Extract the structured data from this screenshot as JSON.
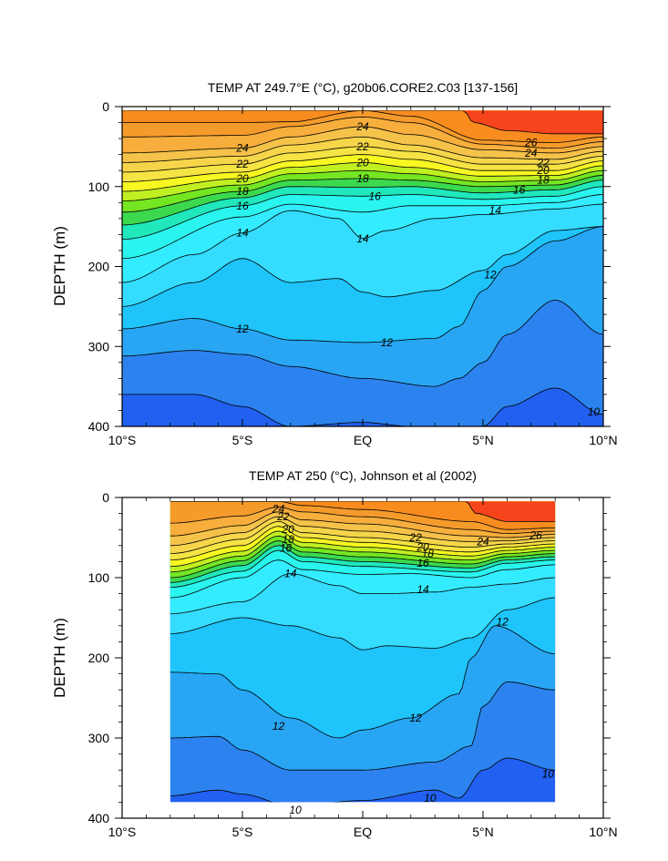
{
  "chart_data": [
    {
      "type": "contour",
      "title": "TEMP AT 249.7°E (°C), g20b06.CORE2.C03 [137-156]",
      "ylabel": "DEPTH (m)",
      "xlabel": "",
      "x_tick_labels": [
        "10°S",
        "5°S",
        "EQ",
        "5°N",
        "10°N"
      ],
      "x_ticks": [
        -10,
        -5,
        0,
        5,
        10
      ],
      "y_tick_labels": [
        "0",
        "100",
        "200",
        "300",
        "400"
      ],
      "y_ticks": [
        0,
        100,
        200,
        300,
        400
      ],
      "xlim": [
        -10,
        10
      ],
      "ylim": [
        0,
        400
      ],
      "y_reversed": true,
      "data_xlim": [
        -10,
        10
      ],
      "data_ylim": [
        5,
        400
      ],
      "contour_interval": 1,
      "isotherms": [
        {
          "level": 27,
          "x": [
            -10,
            -5,
            -3,
            0,
            4.2,
            4.6,
            6,
            8,
            10
          ],
          "y": [
            5,
            5,
            5,
            5,
            5,
            20,
            30,
            34,
            34
          ]
        },
        {
          "level": 26,
          "x": [
            -10,
            -5,
            -3,
            0,
            2,
            5,
            8,
            10
          ],
          "y": [
            20,
            20,
            19,
            5,
            12,
            42,
            45,
            38
          ]
        },
        {
          "level": 25,
          "x": [
            -10,
            -5,
            -3,
            0,
            2,
            5,
            8,
            10
          ],
          "y": [
            38,
            36,
            25,
            13,
            20,
            47,
            52,
            44
          ]
        },
        {
          "level": 24,
          "x": [
            -10,
            -5,
            -3,
            0,
            2,
            5,
            8,
            10
          ],
          "y": [
            58,
            52,
            38,
            25,
            35,
            54,
            58,
            50
          ]
        },
        {
          "level": 23,
          "x": [
            -10,
            -5,
            -3,
            0,
            2,
            5,
            8,
            10
          ],
          "y": [
            70,
            62,
            48,
            38,
            48,
            64,
            66,
            56
          ]
        },
        {
          "level": 22,
          "x": [
            -10,
            -5,
            -3,
            0,
            2,
            5,
            8,
            10
          ],
          "y": [
            82,
            72,
            58,
            50,
            56,
            72,
            72,
            62
          ]
        },
        {
          "level": 21,
          "x": [
            -10,
            -5,
            -3,
            0,
            2,
            5,
            8,
            10
          ],
          "y": [
            94,
            82,
            68,
            60,
            66,
            80,
            80,
            68
          ]
        },
        {
          "level": 20,
          "x": [
            -10,
            -5,
            -3,
            0,
            2,
            5,
            8,
            10
          ],
          "y": [
            106,
            90,
            76,
            70,
            76,
            87,
            86,
            74
          ]
        },
        {
          "level": 19,
          "x": [
            -10,
            -5,
            -3,
            0,
            2,
            5,
            8,
            10
          ],
          "y": [
            118,
            98,
            84,
            80,
            84,
            94,
            92,
            80
          ]
        },
        {
          "level": 18,
          "x": [
            -10,
            -5,
            -3,
            0,
            2,
            5,
            8,
            10
          ],
          "y": [
            132,
            106,
            92,
            90,
            92,
            100,
            98,
            86
          ]
        },
        {
          "level": 17,
          "x": [
            -10,
            -5,
            -3,
            0,
            2,
            5,
            8,
            10
          ],
          "y": [
            148,
            114,
            100,
            101,
            100,
            108,
            104,
            92
          ]
        },
        {
          "level": 16,
          "x": [
            -10,
            -5,
            -3,
            0,
            2,
            5,
            8,
            10
          ],
          "y": [
            166,
            124,
            110,
            112,
            110,
            116,
            112,
            100
          ]
        },
        {
          "level": 15,
          "x": [
            -10,
            -5,
            -3,
            0,
            2,
            5,
            8,
            10
          ],
          "y": [
            190,
            138,
            122,
            132,
            124,
            124,
            120,
            110
          ]
        },
        {
          "level": 14,
          "x": [
            -10,
            -7,
            -5,
            -3,
            -1,
            0,
            1,
            3,
            5,
            8,
            10
          ],
          "y": [
            220,
            185,
            158,
            130,
            140,
            165,
            155,
            140,
            135,
            128,
            122
          ]
        },
        {
          "level": 13,
          "x": [
            -10,
            -7,
            -5,
            -3,
            -1,
            0,
            1,
            3,
            5,
            6,
            8,
            10
          ],
          "y": [
            250,
            220,
            190,
            220,
            215,
            232,
            238,
            230,
            205,
            185,
            155,
            150
          ]
        },
        {
          "level": 12,
          "x": [
            -10,
            -7,
            -5,
            -3,
            0,
            3,
            4,
            5,
            6,
            8,
            10
          ],
          "y": [
            278,
            265,
            278,
            292,
            295,
            290,
            275,
            230,
            200,
            168,
            150
          ]
        },
        {
          "level": 11,
          "x": [
            -10,
            -7,
            -5,
            -3,
            0,
            3,
            4,
            5,
            6,
            8,
            10
          ],
          "y": [
            312,
            305,
            310,
            325,
            340,
            350,
            340,
            320,
            285,
            242,
            285
          ]
        },
        {
          "level": 10,
          "x": [
            -10,
            -7,
            -5,
            -3,
            0,
            2,
            5,
            6,
            8,
            10
          ],
          "y": [
            360,
            360,
            375,
            400,
            395,
            400,
            400,
            375,
            352,
            385
          ]
        }
      ],
      "contour_labels": [
        {
          "text": "24",
          "x": -5,
          "y": 52
        },
        {
          "text": "22",
          "x": -5,
          "y": 72
        },
        {
          "text": "20",
          "x": -5,
          "y": 90
        },
        {
          "text": "18",
          "x": -5,
          "y": 106
        },
        {
          "text": "16",
          "x": -5,
          "y": 124
        },
        {
          "text": "14",
          "x": -5,
          "y": 158
        },
        {
          "text": "12",
          "x": -5,
          "y": 278
        },
        {
          "text": "24",
          "x": 0,
          "y": 25
        },
        {
          "text": "22",
          "x": 0,
          "y": 50
        },
        {
          "text": "20",
          "x": 0,
          "y": 70
        },
        {
          "text": "18",
          "x": 0,
          "y": 90
        },
        {
          "text": "16",
          "x": 0.5,
          "y": 112
        },
        {
          "text": "14",
          "x": 0,
          "y": 165
        },
        {
          "text": "12",
          "x": 1,
          "y": 295
        },
        {
          "text": "26",
          "x": 7,
          "y": 45
        },
        {
          "text": "24",
          "x": 7,
          "y": 58
        },
        {
          "text": "22",
          "x": 7.5,
          "y": 70
        },
        {
          "text": "20",
          "x": 7.5,
          "y": 80
        },
        {
          "text": "18",
          "x": 7.5,
          "y": 92
        },
        {
          "text": "16",
          "x": 6.5,
          "y": 104
        },
        {
          "text": "14",
          "x": 5.5,
          "y": 130
        },
        {
          "text": "12",
          "x": 5.3,
          "y": 210
        },
        {
          "text": "10",
          "x": 9.6,
          "y": 382
        }
      ]
    },
    {
      "type": "contour",
      "title": "TEMP AT 250 (°C), Johnson et al (2002)",
      "ylabel": "DEPTH (m)",
      "xlabel": "",
      "x_tick_labels": [
        "10°S",
        "5°S",
        "EQ",
        "5°N",
        "10°N"
      ],
      "x_ticks": [
        -10,
        -5,
        0,
        5,
        10
      ],
      "y_tick_labels": [
        "0",
        "100",
        "200",
        "300",
        "400"
      ],
      "y_ticks": [
        0,
        100,
        200,
        300,
        400
      ],
      "xlim": [
        -10,
        10
      ],
      "ylim": [
        0,
        400
      ],
      "y_reversed": true,
      "data_xlim": [
        -8,
        8
      ],
      "data_ylim": [
        5,
        380
      ],
      "contour_interval": 1,
      "isotherms": [
        {
          "level": 27,
          "x": [
            -8,
            -3,
            0,
            4.3,
            4.7,
            6,
            8
          ],
          "y": [
            5,
            5,
            5,
            5,
            20,
            30,
            30
          ]
        },
        {
          "level": 26,
          "x": [
            -8,
            -5,
            -3.5,
            -2.5,
            0,
            4.5,
            6,
            8
          ],
          "y": [
            5,
            5,
            5,
            10,
            15,
            30,
            40,
            38
          ]
        },
        {
          "level": 25,
          "x": [
            -8,
            -5,
            -3.5,
            -2.5,
            0,
            4.5,
            6,
            8
          ],
          "y": [
            32,
            23,
            12,
            18,
            24,
            40,
            45,
            42
          ]
        },
        {
          "level": 24,
          "x": [
            -8,
            -5,
            -3.5,
            -2.5,
            0,
            4.5,
            6,
            8
          ],
          "y": [
            48,
            35,
            18,
            28,
            33,
            48,
            50,
            46
          ]
        },
        {
          "level": 23,
          "x": [
            -8,
            -5,
            -3.5,
            -2.5,
            0,
            4.5,
            6,
            8
          ],
          "y": [
            60,
            44,
            24,
            36,
            42,
            55,
            54,
            50
          ]
        },
        {
          "level": 22,
          "x": [
            -8,
            -5,
            -3.5,
            -2.5,
            0,
            4.5,
            6,
            8
          ],
          "y": [
            70,
            52,
            30,
            44,
            50,
            62,
            58,
            54
          ]
        },
        {
          "level": 21,
          "x": [
            -8,
            -5,
            -3.5,
            -2.5,
            0,
            4.5,
            6,
            8
          ],
          "y": [
            78,
            60,
            36,
            50,
            56,
            68,
            62,
            58
          ]
        },
        {
          "level": 20,
          "x": [
            -8,
            -5,
            -3.5,
            -2.5,
            0,
            4.5,
            6,
            8
          ],
          "y": [
            86,
            67,
            42,
            56,
            62,
            73,
            66,
            62
          ]
        },
        {
          "level": 19,
          "x": [
            -8,
            -5,
            -3.5,
            -2.5,
            0,
            4.5,
            6,
            8
          ],
          "y": [
            93,
            73,
            48,
            62,
            68,
            78,
            70,
            66
          ]
        },
        {
          "level": 18,
          "x": [
            -8,
            -5,
            -3.5,
            -2.5,
            0,
            4.5,
            6,
            8
          ],
          "y": [
            100,
            79,
            54,
            68,
            74,
            83,
            74,
            70
          ]
        },
        {
          "level": 17,
          "x": [
            -8,
            -5,
            -3.5,
            -2.5,
            0,
            4.5,
            6,
            8
          ],
          "y": [
            106,
            85,
            60,
            74,
            80,
            88,
            78,
            74
          ]
        },
        {
          "level": 16,
          "x": [
            -8,
            -5,
            -3.5,
            -2.5,
            0,
            4.5,
            6,
            8
          ],
          "y": [
            112,
            92,
            66,
            80,
            86,
            93,
            82,
            78
          ]
        },
        {
          "level": 15,
          "x": [
            -8,
            -5,
            -3.5,
            -2.5,
            0,
            2,
            4.5,
            6,
            8
          ],
          "y": [
            125,
            100,
            78,
            90,
            96,
            95,
            100,
            90,
            84
          ]
        },
        {
          "level": 14,
          "x": [
            -8,
            -5,
            -3,
            -1,
            0,
            1,
            3,
            4.5,
            6,
            8
          ],
          "y": [
            145,
            130,
            95,
            110,
            120,
            120,
            118,
            112,
            108,
            100
          ]
        },
        {
          "level": 13,
          "x": [
            -8,
            -5,
            -3,
            -1,
            0,
            1,
            3,
            4.5,
            6,
            8
          ],
          "y": [
            170,
            150,
            160,
            175,
            190,
            185,
            188,
            175,
            140,
            125
          ]
        },
        {
          "level": 12,
          "x": [
            -8,
            -6,
            -5,
            -3,
            -1,
            0,
            2,
            4,
            4.5,
            5.5,
            8
          ],
          "y": [
            218,
            220,
            240,
            275,
            300,
            290,
            275,
            245,
            200,
            160,
            195
          ]
        },
        {
          "level": 11,
          "x": [
            -8,
            -6,
            -5,
            -3,
            0,
            3,
            4.5,
            5,
            6,
            8
          ],
          "y": [
            300,
            298,
            315,
            340,
            340,
            330,
            310,
            260,
            230,
            240
          ]
        },
        {
          "level": 10,
          "x": [
            -8,
            -6,
            -5,
            -3,
            0,
            3,
            4,
            5,
            6,
            8
          ],
          "y": [
            372,
            365,
            370,
            385,
            378,
            365,
            375,
            340,
            325,
            340
          ]
        }
      ],
      "contour_labels": [
        {
          "text": "24",
          "x": -3.5,
          "y": 14
        },
        {
          "text": "22",
          "x": -3.3,
          "y": 24
        },
        {
          "text": "20",
          "x": -3.1,
          "y": 40
        },
        {
          "text": "18",
          "x": -3.1,
          "y": 52
        },
        {
          "text": "16",
          "x": -3.2,
          "y": 63
        },
        {
          "text": "14",
          "x": -3,
          "y": 95
        },
        {
          "text": "12",
          "x": -3.5,
          "y": 285
        },
        {
          "text": "10",
          "x": -2.8,
          "y": 390
        },
        {
          "text": "22",
          "x": 2.2,
          "y": 50
        },
        {
          "text": "20",
          "x": 2.5,
          "y": 62
        },
        {
          "text": "18",
          "x": 2.7,
          "y": 70
        },
        {
          "text": "16",
          "x": 2.5,
          "y": 82
        },
        {
          "text": "14",
          "x": 2.5,
          "y": 115
        },
        {
          "text": "12",
          "x": 2.2,
          "y": 275
        },
        {
          "text": "10",
          "x": 2.8,
          "y": 375
        },
        {
          "text": "24",
          "x": 5,
          "y": 55
        },
        {
          "text": "26",
          "x": 7.2,
          "y": 47
        },
        {
          "text": "12",
          "x": 5.8,
          "y": 155
        },
        {
          "text": "10",
          "x": 7.7,
          "y": 345
        }
      ]
    }
  ]
}
